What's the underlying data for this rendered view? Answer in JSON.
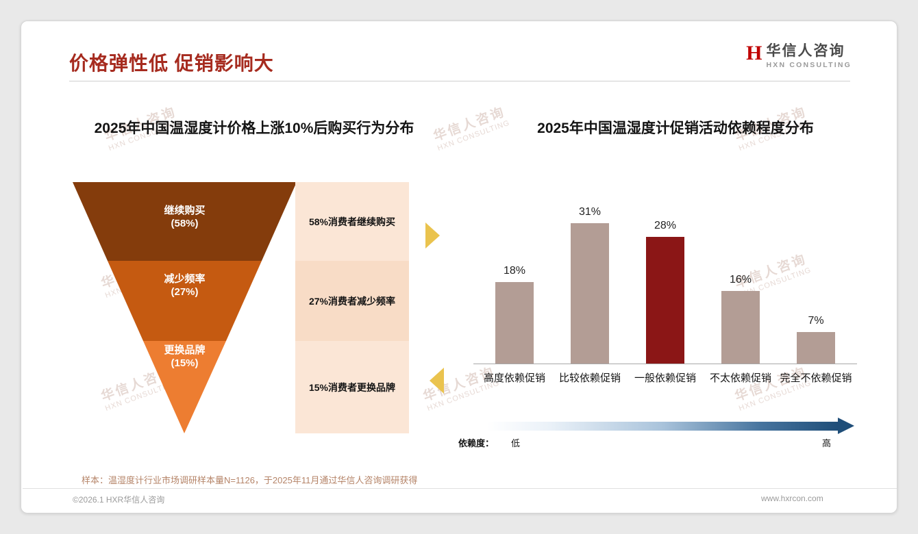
{
  "page": {
    "title": "价格弹性低 促销影响大",
    "sample_note": "样本：温湿度计行业市场调研样本量N=1126，于2025年11月通过华信人咨询调研获得",
    "footer_left": "©2026.1 HXR华信人咨询",
    "footer_right": "www.hxrcon.com"
  },
  "logo": {
    "mark": "H",
    "name": "华信人咨询",
    "subtitle": "HXN CONSULTING"
  },
  "watermark": {
    "line1": "华信人咨询",
    "line2": "HXN CONSULTING"
  },
  "colors": {
    "title_accent": "#a62b1f",
    "bar_default": "#b39d95",
    "bar_highlight": "#8b1616",
    "arrow_yellow": "#eac34e",
    "gradient_end": "#1f4e79"
  },
  "chart_data": [
    {
      "type": "funnel",
      "title": "2025年中国温湿度计价格上涨10%后购买行为分布",
      "stages": [
        {
          "label": "继续购买",
          "pct": "(58%)",
          "value": 58,
          "note": "58%消费者继续购买",
          "color": "#843c0c"
        },
        {
          "label": "减少频率",
          "pct": "(27%)",
          "value": 27,
          "note": "27%消费者减少频率",
          "color": "#c55a11"
        },
        {
          "label": "更换品牌",
          "pct": "(15%)",
          "value": 15,
          "note": "15%消费者更换品牌",
          "color": "#ed7d31"
        }
      ]
    },
    {
      "type": "bar",
      "title": "2025年中国温湿度计促销活动依赖程度分布",
      "categories": [
        "高度依赖促销",
        "比较依赖促销",
        "一般依赖促销",
        "不太依赖促销",
        "完全不依赖促销"
      ],
      "values": [
        18,
        31,
        28,
        16,
        7
      ],
      "labels": [
        "18%",
        "31%",
        "28%",
        "16%",
        "7%"
      ],
      "ylim": [
        0,
        31
      ],
      "bar_color": "#b39d95",
      "highlight_index": 2,
      "highlight_color": "#8b1616",
      "legend_position": "none",
      "grid": false,
      "axis": {
        "legend_label": "依赖度：",
        "low": "低",
        "high": "高"
      }
    }
  ]
}
